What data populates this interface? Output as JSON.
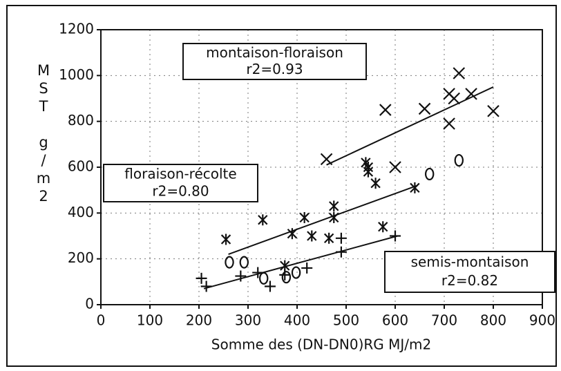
{
  "chart_data": {
    "type": "scatter",
    "x_label": "Somme des (DN-DN0)RG MJ/m2",
    "y_label": "MST g/m2",
    "xlim": [
      0,
      900
    ],
    "xticks": [
      0,
      100,
      200,
      300,
      400,
      500,
      600,
      700,
      800,
      900
    ],
    "ylim": [
      0,
      1200
    ],
    "yticks": [
      0,
      200,
      400,
      600,
      800,
      1000,
      1200
    ],
    "grid": true,
    "color": "#111111",
    "series": [
      {
        "marker": "x",
        "x": [
          460,
          580,
          600,
          660,
          710,
          710,
          720,
          730,
          755,
          800
        ],
        "values": [
          635,
          850,
          600,
          855,
          790,
          920,
          900,
          1010,
          920,
          845
        ]
      },
      {
        "marker": "asterisk",
        "x": [
          255,
          330,
          375,
          390,
          415,
          430,
          465,
          475,
          475,
          540,
          545,
          545,
          560,
          575,
          640
        ],
        "values": [
          285,
          370,
          170,
          310,
          380,
          300,
          290,
          430,
          380,
          620,
          600,
          580,
          530,
          340,
          510
        ]
      },
      {
        "marker": "o",
        "x": [
          262,
          292,
          332,
          378,
          398,
          670,
          730
        ],
        "values": [
          185,
          185,
          115,
          120,
          140,
          570,
          630
        ]
      },
      {
        "marker": "plus",
        "x": [
          205,
          215,
          285,
          320,
          345,
          375,
          420,
          490,
          490,
          600
        ],
        "values": [
          115,
          80,
          125,
          140,
          80,
          130,
          160,
          290,
          230,
          300
        ]
      }
    ],
    "lines": [
      {
        "x": [
          460,
          800
        ],
        "values": [
          610,
          950
        ]
      },
      {
        "x": [
          260,
          645
        ],
        "values": [
          220,
          520
        ]
      },
      {
        "x": [
          210,
          605
        ],
        "values": [
          70,
          300
        ]
      }
    ],
    "annotations": [
      {
        "text": "montaison-floraison",
        "r2": "r2=0.93"
      },
      {
        "text": "floraison-récolte",
        "r2": "r2=0.80"
      },
      {
        "text": "semis-montaison",
        "r2": "r2=0.82"
      }
    ]
  }
}
